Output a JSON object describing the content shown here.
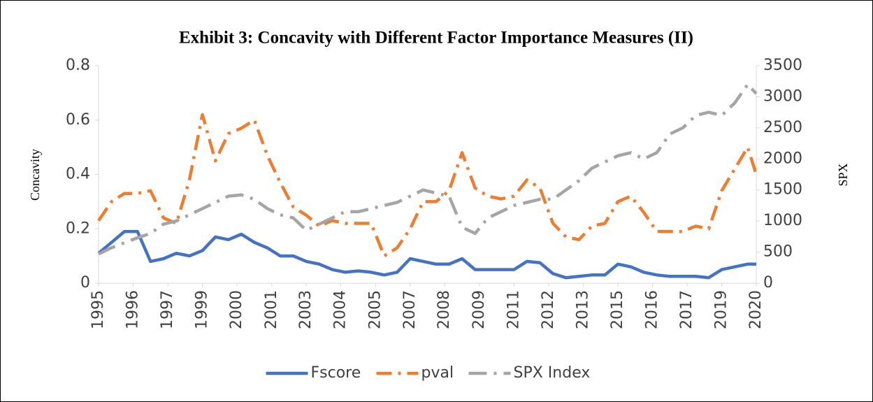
{
  "chart_data": {
    "type": "line",
    "title": "Exhibit 3: Concavity with Different Factor Importance Measures (II)",
    "y_label": "Concavity",
    "y2_label": "SPX",
    "x": [
      1995,
      1995.5,
      1996,
      1996.5,
      1997,
      1997.5,
      1998,
      1998.5,
      1999,
      1999.5,
      2000,
      2000.5,
      2001,
      2001.5,
      2002,
      2002.5,
      2003,
      2003.5,
      2004,
      2004.5,
      2005,
      2005.5,
      2006,
      2006.5,
      2007,
      2007.5,
      2008,
      2008.5,
      2009,
      2009.5,
      2010,
      2010.5,
      2011,
      2011.5,
      2012,
      2012.5,
      2013,
      2013.5,
      2014,
      2014.5,
      2015,
      2015.5,
      2016,
      2016.5,
      2017,
      2017.5,
      2018,
      2018.5,
      2019,
      2019.5,
      2020,
      2020.33
    ],
    "series": [
      {
        "name": "Fscore",
        "color": "#4472c4",
        "axis": "y",
        "values": [
          0.11,
          0.15,
          0.19,
          0.19,
          0.08,
          0.09,
          0.11,
          0.1,
          0.12,
          0.17,
          0.16,
          0.18,
          0.15,
          0.13,
          0.1,
          0.1,
          0.08,
          0.07,
          0.05,
          0.04,
          0.045,
          0.04,
          0.03,
          0.04,
          0.09,
          0.08,
          0.07,
          0.07,
          0.09,
          0.05,
          0.05,
          0.05,
          0.05,
          0.08,
          0.075,
          0.035,
          0.02,
          0.025,
          0.03,
          0.03,
          0.07,
          0.06,
          0.04,
          0.03,
          0.025,
          0.025,
          0.025,
          0.02,
          0.05,
          0.06,
          0.07,
          0.07
        ]
      },
      {
        "name": "pval",
        "color": "#ed7d31",
        "axis": "y",
        "values": [
          0.23,
          0.3,
          0.33,
          0.33,
          0.34,
          0.24,
          0.22,
          0.38,
          0.62,
          0.45,
          0.55,
          0.57,
          0.6,
          0.47,
          0.37,
          0.28,
          0.25,
          0.21,
          0.23,
          0.22,
          0.22,
          0.22,
          0.1,
          0.13,
          0.2,
          0.3,
          0.3,
          0.34,
          0.48,
          0.35,
          0.32,
          0.31,
          0.32,
          0.38,
          0.35,
          0.22,
          0.17,
          0.16,
          0.21,
          0.22,
          0.3,
          0.32,
          0.26,
          0.19,
          0.19,
          0.19,
          0.21,
          0.2,
          0.34,
          0.42,
          0.5,
          0.4
        ]
      },
      {
        "name": "SPX Index",
        "color": "#a5a5a5",
        "axis": "y2",
        "values": [
          470,
          570,
          650,
          730,
          800,
          950,
          1000,
          1100,
          1200,
          1300,
          1400,
          1420,
          1350,
          1200,
          1100,
          1050,
          850,
          950,
          1050,
          1150,
          1150,
          1200,
          1250,
          1300,
          1400,
          1500,
          1450,
          1400,
          900,
          800,
          1050,
          1150,
          1250,
          1300,
          1350,
          1350,
          1500,
          1650,
          1850,
          1950,
          2050,
          2100,
          2000,
          2100,
          2400,
          2500,
          2700,
          2750,
          2700,
          2900,
          3200,
          3050
        ]
      }
    ],
    "xlim": [
      1995,
      2020.33
    ],
    "xticks": [
      1995,
      {
        "value": 1996.33,
        "label": "1996"
      },
      {
        "value": 1997.67,
        "label": "1997"
      },
      1999,
      {
        "value": 2000.33,
        "label": "2000"
      },
      {
        "value": 2001.67,
        "label": "2001"
      },
      2003,
      {
        "value": 2004.33,
        "label": "2004"
      },
      {
        "value": 2005.67,
        "label": "2005"
      },
      2007,
      {
        "value": 2008.33,
        "label": "2008"
      },
      {
        "value": 2009.67,
        "label": "2009"
      },
      2011,
      {
        "value": 2012.33,
        "label": "2012"
      },
      {
        "value": 2013.67,
        "label": "2013"
      },
      2015,
      {
        "value": 2016.33,
        "label": "2016"
      },
      {
        "value": 2017.67,
        "label": "2017"
      },
      2019,
      {
        "value": 2020.33,
        "label": "2020"
      }
    ],
    "ylim": [
      0,
      0.8
    ],
    "yticks": [
      0,
      0.2,
      0.4,
      0.6,
      0.8
    ],
    "y2lim": [
      0,
      3500
    ],
    "y2ticks": [
      0,
      500,
      1000,
      1500,
      2000,
      2500,
      3000,
      3500
    ],
    "grid": false,
    "legend": "bottom"
  }
}
